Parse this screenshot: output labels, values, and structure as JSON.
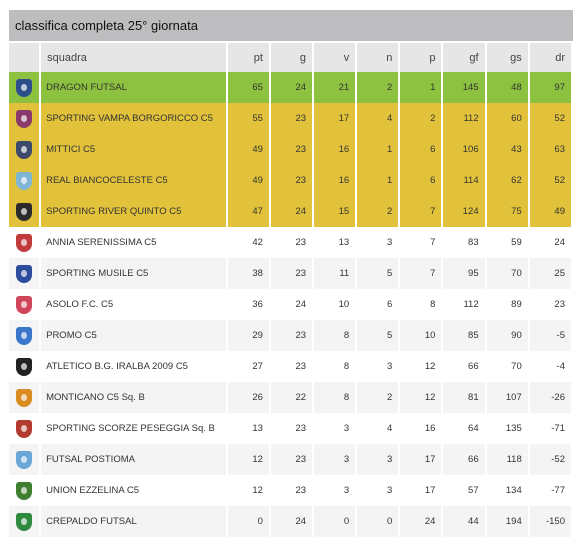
{
  "title": "classifica completa 25° giornata",
  "headers": {
    "team": "squadra",
    "pt": "pt",
    "g": "g",
    "v": "v",
    "n": "n",
    "p": "p",
    "gf": "gf",
    "gs": "gs",
    "dr": "dr"
  },
  "rows": [
    {
      "team": "DRAGON FUTSAL",
      "pt": "65",
      "g": "24",
      "v": "21",
      "n": "2",
      "p": "1",
      "gf": "145",
      "gs": "48",
      "dr": "97",
      "crest_color": "#2a4f8a",
      "crest_icon": "dragon-crest-icon"
    },
    {
      "team": "SPORTING VAMPA BORGORICCO C5",
      "pt": "55",
      "g": "23",
      "v": "17",
      "n": "4",
      "p": "2",
      "gf": "112",
      "gs": "60",
      "dr": "52",
      "crest_color": "#8a3a6a",
      "crest_icon": "vampa-crest-icon"
    },
    {
      "team": "MITTICI C5",
      "pt": "49",
      "g": "23",
      "v": "16",
      "n": "1",
      "p": "6",
      "gf": "106",
      "gs": "43",
      "dr": "63",
      "crest_color": "#3d4a6b",
      "crest_icon": "mittici-crest-icon"
    },
    {
      "team": "REAL BIANCOCELESTE C5",
      "pt": "49",
      "g": "23",
      "v": "16",
      "n": "1",
      "p": "6",
      "gf": "114",
      "gs": "62",
      "dr": "52",
      "crest_color": "#7fb6d6",
      "crest_icon": "biancoceleste-crest-icon"
    },
    {
      "team": "SPORTING RIVER QUINTO C5",
      "pt": "47",
      "g": "24",
      "v": "15",
      "n": "2",
      "p": "7",
      "gf": "124",
      "gs": "75",
      "dr": "49",
      "crest_color": "#2b2b2b",
      "crest_icon": "river-quinto-crest-icon"
    },
    {
      "team": "ANNIA SERENISSIMA C5",
      "pt": "42",
      "g": "23",
      "v": "13",
      "n": "3",
      "p": "7",
      "gf": "83",
      "gs": "59",
      "dr": "24",
      "crest_color": "#c23b3b",
      "crest_icon": "annia-crest-icon"
    },
    {
      "team": "SPORTING MUSILE C5",
      "pt": "38",
      "g": "23",
      "v": "11",
      "n": "5",
      "p": "7",
      "gf": "95",
      "gs": "70",
      "dr": "25",
      "crest_color": "#2c4d9e",
      "crest_icon": "musile-crest-icon"
    },
    {
      "team": "ASOLO F.C. C5",
      "pt": "36",
      "g": "24",
      "v": "10",
      "n": "6",
      "p": "8",
      "gf": "112",
      "gs": "89",
      "dr": "23",
      "crest_color": "#d0455a",
      "crest_icon": "asolo-crest-icon"
    },
    {
      "team": "PROMO C5",
      "pt": "29",
      "g": "23",
      "v": "8",
      "n": "5",
      "p": "10",
      "gf": "85",
      "gs": "90",
      "dr": "-5",
      "crest_color": "#3a76c9",
      "crest_icon": "promo-crest-icon"
    },
    {
      "team": "ATLETICO B.G. IRALBA 2009 C5",
      "pt": "27",
      "g": "23",
      "v": "8",
      "n": "3",
      "p": "12",
      "gf": "66",
      "gs": "70",
      "dr": "-4",
      "crest_color": "#222222",
      "crest_icon": "atletico-crest-icon"
    },
    {
      "team": "MONTICANO C5 Sq. B",
      "pt": "26",
      "g": "22",
      "v": "8",
      "n": "2",
      "p": "12",
      "gf": "81",
      "gs": "107",
      "dr": "-26",
      "crest_color": "#d98b1f",
      "crest_icon": "monticano-crest-icon"
    },
    {
      "team": "SPORTING SCORZE PESEGGIA Sq. B",
      "pt": "13",
      "g": "23",
      "v": "3",
      "n": "4",
      "p": "16",
      "gf": "64",
      "gs": "135",
      "dr": "-71",
      "crest_color": "#b23a2e",
      "crest_icon": "scorze-crest-icon"
    },
    {
      "team": "FUTSAL POSTIOMA",
      "pt": "12",
      "g": "23",
      "v": "3",
      "n": "3",
      "p": "17",
      "gf": "66",
      "gs": "118",
      "dr": "-52",
      "crest_color": "#6aa6d6",
      "crest_icon": "postioma-crest-icon"
    },
    {
      "team": "UNION EZZELINA C5",
      "pt": "12",
      "g": "23",
      "v": "3",
      "n": "3",
      "p": "17",
      "gf": "57",
      "gs": "134",
      "dr": "-77",
      "crest_color": "#3f7f2f",
      "crest_icon": "ezzelina-crest-icon"
    },
    {
      "team": "CREPALDO FUTSAL",
      "pt": "0",
      "g": "24",
      "v": "0",
      "n": "0",
      "p": "24",
      "gf": "44",
      "gs": "194",
      "dr": "-150",
      "crest_color": "#2f8a3f",
      "crest_icon": "crepaldo-crest-icon"
    }
  ],
  "colors": {
    "leader_row": "#8cc23f",
    "top_rows": "#e2c23a",
    "header_bg": "#e6e6e6",
    "title_bg": "#bdbdbf"
  }
}
